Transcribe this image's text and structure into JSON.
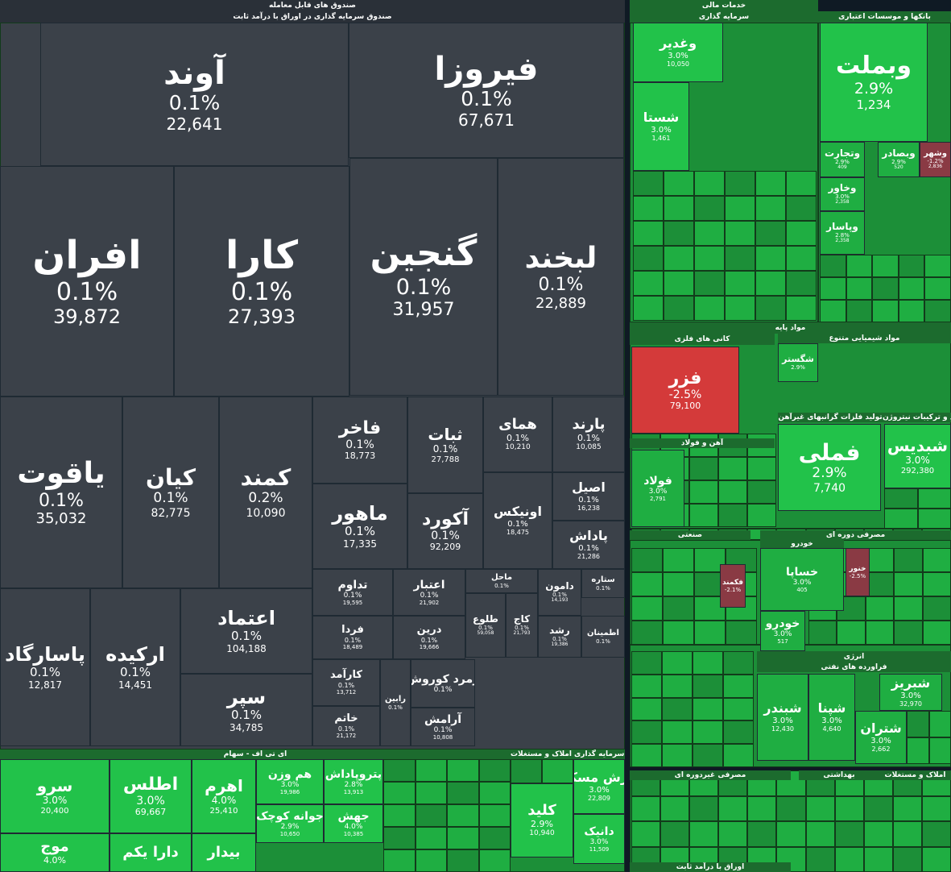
{
  "colors": {
    "fund_gray": "#3b4149",
    "green_strong": "#22c24a",
    "green_mid": "#1fae42",
    "green_dark": "#1c8f38",
    "red": "#d43a3a",
    "maroon": "#8a3a44",
    "background": "#0f1a24",
    "header_bar": "#1c6b2e"
  },
  "chart_data": {
    "type": "treemap",
    "sections": [
      {
        "title": "صندوق های قابل معامله",
        "subtitle": "صندوق سرمایه گذاری در اوراق با درآمد ثابت"
      },
      {
        "title": "خدمات مالی",
        "subtitle": "سرمایه گذاری"
      },
      {
        "title": "بانکها و موسسات اعتباری"
      },
      {
        "title": "مواد پایه",
        "subtitle": "کانی های فلزی"
      },
      {
        "title": "مواد شیمیایی متنوع"
      },
      {
        "title": "تولید فلزات گرانبهای غیرآهن"
      },
      {
        "title": "کود و ترکیبات نیتروژن"
      },
      {
        "title": "آهن و فولاد"
      },
      {
        "title": "صنعتی"
      },
      {
        "title": "مصرفی دوره ای"
      },
      {
        "title": "خودرو"
      },
      {
        "title": "انرژی",
        "subtitle": "فراورده های نفتی"
      },
      {
        "title": "مصرفی غیردوره ای"
      },
      {
        "title": "بهداشتی"
      },
      {
        "title": "املاک و مستغلات"
      },
      {
        "title": "ای تی اف - سهام"
      },
      {
        "title": "صندوق سرمایه گذاری املاک و مستغلات"
      },
      {
        "title": "اوراق با درآمد ثابت"
      }
    ],
    "tiles": [
      {
        "name": "آوند",
        "change": "0.1%",
        "value": "22,641"
      },
      {
        "name": "فیروزا",
        "change": "0.1%",
        "value": "67,671"
      },
      {
        "name": "افران",
        "change": "0.1%",
        "value": "39,872"
      },
      {
        "name": "کارا",
        "change": "0.1%",
        "value": "27,393"
      },
      {
        "name": "گنجین",
        "change": "0.1%",
        "value": "31,957"
      },
      {
        "name": "لبخند",
        "change": "0.1%",
        "value": "22,889"
      },
      {
        "name": "یاقوت",
        "change": "0.1%",
        "value": "35,032"
      },
      {
        "name": "کیان",
        "change": "0.1%",
        "value": "82,775"
      },
      {
        "name": "کمند",
        "change": "0.2%",
        "value": "10,090"
      },
      {
        "name": "فاخر",
        "change": "0.1%",
        "value": "18,773"
      },
      {
        "name": "ثبات",
        "change": "0.1%",
        "value": "27,788"
      },
      {
        "name": "همای",
        "change": "0.1%",
        "value": "10,210"
      },
      {
        "name": "پارند",
        "change": "0.1%",
        "value": "10,085"
      },
      {
        "name": "ماهور",
        "change": "0.1%",
        "value": "17,335"
      },
      {
        "name": "آکورد",
        "change": "0.1%",
        "value": "92,209"
      },
      {
        "name": "اونیکس",
        "change": "0.1%",
        "value": "18,475"
      },
      {
        "name": "اصیل",
        "change": "0.1%",
        "value": "16,238"
      },
      {
        "name": "پاداش",
        "change": "0.1%",
        "value": "21,286"
      },
      {
        "name": "تداوم",
        "change": "0.1%",
        "value": "19,595"
      },
      {
        "name": "اعتبار",
        "change": "0.1%",
        "value": "21,902"
      },
      {
        "name": "ماحل",
        "change": "0.1%",
        "value": ""
      },
      {
        "name": "دامون",
        "change": "0.1%",
        "value": "14,193"
      },
      {
        "name": "ستاره",
        "change": "0.1%",
        "value": ""
      },
      {
        "name": "اعتماد",
        "change": "0.1%",
        "value": "104,188"
      },
      {
        "name": "پاسارگاد",
        "change": "0.1%",
        "value": "12,817"
      },
      {
        "name": "ارکیده",
        "change": "0.1%",
        "value": "14,451"
      },
      {
        "name": "فردا",
        "change": "0.1%",
        "value": "18,489"
      },
      {
        "name": "درین",
        "change": "0.1%",
        "value": "19,666"
      },
      {
        "name": "طلوع",
        "change": "0.1%",
        "value": "59,058"
      },
      {
        "name": "کاج",
        "change": "0.1%",
        "value": "21,793"
      },
      {
        "name": "رشد",
        "change": "0.1%",
        "value": "19,386"
      },
      {
        "name": "اطمینان",
        "change": "0.1%",
        "value": ""
      },
      {
        "name": "سپر",
        "change": "0.1%",
        "value": "34,785"
      },
      {
        "name": "کارآمد",
        "change": "0.1%",
        "value": "13,712"
      },
      {
        "name": "زمرد کوروش",
        "change": "0.1%",
        "value": ""
      },
      {
        "name": "رابین",
        "change": "0.1%",
        "value": ""
      },
      {
        "name": "خاتم",
        "change": "0.1%",
        "value": "21,172"
      },
      {
        "name": "آرامش",
        "change": "0.1%",
        "value": "10,808"
      },
      {
        "name": "سرو",
        "change": "3.0%",
        "value": "20,400"
      },
      {
        "name": "اطلس",
        "change": "3.0%",
        "value": "69,667"
      },
      {
        "name": "اهرم",
        "change": "4.0%",
        "value": "25,410"
      },
      {
        "name": "هم وزن",
        "change": "3.0%",
        "value": "19,986"
      },
      {
        "name": "پتروپاداش",
        "change": "2.8%",
        "value": "13,913"
      },
      {
        "name": "جوانه کوچک",
        "change": "2.9%",
        "value": "10,650"
      },
      {
        "name": "جهش",
        "change": "4.0%",
        "value": "10,385"
      },
      {
        "name": "موج",
        "change": "4.0%",
        "value": ""
      },
      {
        "name": "دارا یکم",
        "change": "",
        "value": ""
      },
      {
        "name": "بیدار",
        "change": "",
        "value": ""
      },
      {
        "name": "ارزش مسکن",
        "change": "3.0%",
        "value": "22,809"
      },
      {
        "name": "کلید",
        "change": "2.9%",
        "value": "10,940"
      },
      {
        "name": "دانیک",
        "change": "3.0%",
        "value": "11,509"
      },
      {
        "name": "وغدیر",
        "change": "3.0%",
        "value": "10,050"
      },
      {
        "name": "شستا",
        "change": "3.0%",
        "value": "1,461"
      },
      {
        "name": "وبملت",
        "change": "2.9%",
        "value": "1,234"
      },
      {
        "name": "وتجارت",
        "change": "2.9%",
        "value": "409"
      },
      {
        "name": "وبصادر",
        "change": "2.9%",
        "value": "520"
      },
      {
        "name": "وشهر",
        "change": "-1.2%",
        "value": "2,836"
      },
      {
        "name": "وخاور",
        "change": "3.0%",
        "value": "2,358"
      },
      {
        "name": "وپاسار",
        "change": "2.8%",
        "value": "2,358"
      },
      {
        "name": "فزر",
        "change": "-2.5%",
        "value": "79,100"
      },
      {
        "name": "فملی",
        "change": "2.9%",
        "value": "7,740"
      },
      {
        "name": "شبدیس",
        "change": "3.0%",
        "value": "292,380"
      },
      {
        "name": "فولاد",
        "change": "3.0%",
        "value": "2,791"
      },
      {
        "name": "خساپا",
        "change": "3.0%",
        "value": "405"
      },
      {
        "name": "خودرو",
        "change": "3.0%",
        "value": "517"
      },
      {
        "name": "شبندر",
        "change": "3.0%",
        "value": "12,430"
      },
      {
        "name": "شپنا",
        "change": "3.0%",
        "value": "4,640"
      },
      {
        "name": "شتران",
        "change": "3.0%",
        "value": "2,662"
      },
      {
        "name": "شبریز",
        "change": "3.0%",
        "value": "32,970"
      },
      {
        "name": "شگستر",
        "change": "2.9%",
        "value": ""
      },
      {
        "name": "فکمند",
        "change": "-2.1%",
        "value": ""
      },
      {
        "name": "خنور",
        "change": "-2.5%",
        "value": ""
      }
    ]
  }
}
